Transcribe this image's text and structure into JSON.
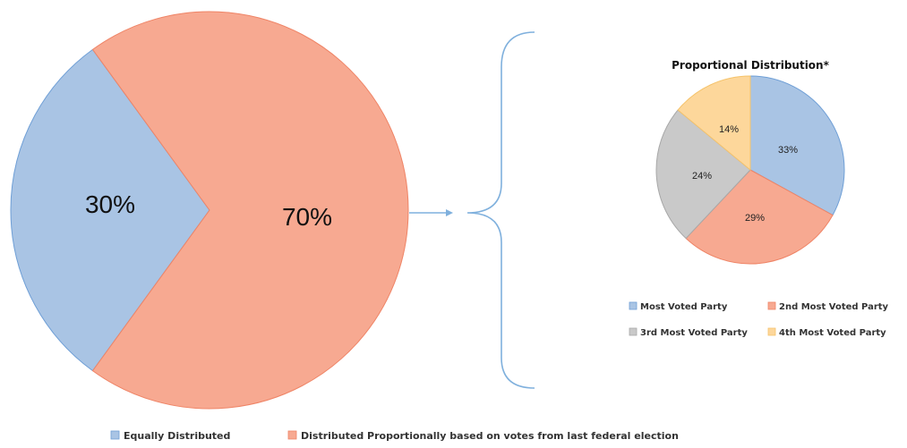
{
  "colors": {
    "blue": "#a9c4e4",
    "blue_stroke": "#6f9fd6",
    "salmon": "#f7a991",
    "salmon_stroke": "#ef8466",
    "gray": "#c9c9c9",
    "gray_stroke": "#a8a8a8",
    "yellow": "#fdd79b",
    "yellow_stroke": "#f5c36b",
    "connector": "#7fb0dd"
  },
  "chart_data": [
    {
      "type": "pie",
      "title": "",
      "slices": [
        {
          "label": "Equally Distributed",
          "value": 30,
          "display": "30%",
          "color": "#a9c4e4"
        },
        {
          "label": "Distributed Proportionally based on votes from last federal election",
          "value": 70,
          "display": "70%",
          "color": "#f7a991"
        }
      ],
      "legend": {
        "position": "bottom",
        "entries": [
          "Equally Distributed",
          "Distributed Proportionally based on votes from last federal election"
        ]
      }
    },
    {
      "type": "pie",
      "title": "Proportional Distribution*",
      "slices": [
        {
          "label": "Most Voted Party",
          "value": 33,
          "display": "33%",
          "color": "#a9c4e4"
        },
        {
          "label": "2nd Most Voted Party",
          "value": 29,
          "display": "29%",
          "color": "#f7a991"
        },
        {
          "label": "3rd Most Voted Party",
          "value": 24,
          "display": "24%",
          "color": "#c9c9c9"
        },
        {
          "label": "4th Most Voted Party",
          "value": 14,
          "display": "14%",
          "color": "#fdd79b"
        }
      ],
      "legend": {
        "position": "bottom",
        "entries": [
          "Most Voted Party",
          "2nd Most Voted Party",
          "3rd Most Voted Party",
          "4th Most Voted Party"
        ]
      }
    }
  ]
}
